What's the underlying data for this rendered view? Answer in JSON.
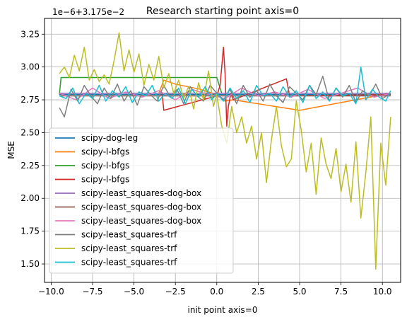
{
  "chart_data": {
    "type": "line",
    "title": "Research starting point axis=0",
    "xlabel": "init point axis=0",
    "ylabel": "MSE",
    "offset_label": "1e−6+3.175e−2",
    "xlim": [
      -10.4,
      11.1
    ],
    "ylim": [
      1.36,
      3.37
    ],
    "grid": true,
    "legend_position": "lower-left",
    "x_ticks": [
      -10.0,
      -7.5,
      -5.0,
      -2.5,
      0.0,
      2.5,
      5.0,
      7.5,
      10.0
    ],
    "x_tick_labels": [
      "−10.0",
      "−7.5",
      "−5.0",
      "−2.5",
      "0.0",
      "2.5",
      "5.0",
      "7.5",
      "10.0"
    ],
    "y_ticks": [
      1.5,
      1.75,
      2.0,
      2.25,
      2.5,
      2.75,
      3.0,
      3.25
    ],
    "y_tick_labels": [
      "1.50",
      "1.75",
      "2.00",
      "2.25",
      "2.50",
      "2.75",
      "3.00",
      "3.25"
    ],
    "series": [
      {
        "name": "scipy-dog-leg",
        "color": "#1f77b4",
        "x": [
          -9.5,
          -5.0,
          0.0,
          5.0,
          10.5
        ],
        "y": [
          2.79,
          2.79,
          2.79,
          2.79,
          2.79
        ]
      },
      {
        "name": "scipy-l-bfgs",
        "color": "#ff7f0e",
        "x": [
          -9.5,
          -3.5,
          -3.2,
          -2.5,
          -1.0,
          0.0,
          0.5,
          1.0,
          5.0,
          10.5
        ],
        "y": [
          2.8,
          2.8,
          2.9,
          2.87,
          2.83,
          2.79,
          2.74,
          2.75,
          2.67,
          2.8
        ]
      },
      {
        "name": "scipy-l-bfgs",
        "color": "#2ca02c",
        "x": [
          -9.5,
          -9.4,
          0.0,
          0.3,
          10.5
        ],
        "y": [
          2.79,
          2.92,
          2.92,
          2.8,
          2.8
        ]
      },
      {
        "name": "scipy-l-bfgs",
        "color": "#d62728",
        "x": [
          -9.5,
          -3.3,
          -3.2,
          0.0,
          0.2,
          0.4,
          0.5,
          0.6,
          0.7,
          0.85,
          1.0,
          4.2,
          4.4,
          10.5
        ],
        "y": [
          2.8,
          2.8,
          2.67,
          2.78,
          2.86,
          3.15,
          2.95,
          2.55,
          2.7,
          2.8,
          2.75,
          2.91,
          2.78,
          2.79
        ]
      },
      {
        "name": "scipy-least_squares-dog-box",
        "color": "#9467bd",
        "x": [
          -9.5,
          -5.0,
          0.0,
          5.0,
          10.5
        ],
        "y": [
          2.8,
          2.8,
          2.8,
          2.8,
          2.8
        ]
      },
      {
        "name": "scipy-least_squares-dog-box",
        "color": "#8c564b",
        "x": [
          -9.5,
          -5.0,
          0.0,
          5.0,
          10.5
        ],
        "y": [
          2.78,
          2.78,
          2.78,
          2.78,
          2.78
        ]
      },
      {
        "name": "scipy-least_squares-dog-box",
        "color": "#e377c2",
        "x": [
          -9.5,
          -8.5,
          -7.5,
          -6.5,
          -5.5,
          -4.5,
          -3.5,
          -2.5,
          -1.5,
          -0.5,
          0.5,
          1.5,
          2.5,
          3.5,
          4.5,
          5.5,
          6.5,
          7.5,
          8.5,
          9.5,
          10.5
        ],
        "y": [
          2.8,
          2.75,
          2.84,
          2.76,
          2.81,
          2.77,
          2.82,
          2.75,
          2.83,
          2.79,
          2.76,
          2.84,
          2.78,
          2.81,
          2.77,
          2.83,
          2.76,
          2.8,
          2.84,
          2.77,
          2.8
        ]
      },
      {
        "name": "scipy-least_squares-trf",
        "color": "#7f7f7f",
        "x": [
          -9.5,
          -9.2,
          -8.8,
          -8.4,
          -8.0,
          -7.6,
          -7.2,
          -6.8,
          -6.4,
          -6.0,
          -5.6,
          -5.2,
          -4.8,
          -4.4,
          -4.0,
          -3.6,
          -3.2,
          -2.8,
          -2.4,
          -2.0,
          -1.6,
          -1.2,
          -0.8,
          -0.4,
          0.0,
          0.4,
          0.8,
          1.2,
          1.6,
          2.0,
          2.4,
          2.8,
          3.2,
          3.6,
          4.0,
          4.4,
          4.8,
          5.2,
          5.6,
          6.0,
          6.4,
          6.8,
          7.2,
          7.6,
          8.0,
          8.4,
          8.8,
          9.2,
          9.6,
          10.0,
          10.5
        ],
        "y": [
          2.69,
          2.62,
          2.83,
          2.74,
          2.86,
          2.78,
          2.72,
          2.84,
          2.76,
          2.87,
          2.74,
          2.82,
          2.71,
          2.85,
          2.79,
          2.74,
          2.86,
          2.77,
          2.83,
          2.72,
          2.85,
          2.78,
          2.74,
          2.86,
          2.8,
          2.75,
          2.83,
          2.72,
          2.86,
          2.77,
          2.82,
          2.74,
          2.87,
          2.78,
          2.73,
          2.85,
          2.8,
          2.75,
          2.86,
          2.79,
          2.93,
          2.74,
          2.84,
          2.77,
          2.86,
          2.73,
          2.82,
          2.78,
          2.87,
          2.76,
          2.8
        ]
      },
      {
        "name": "scipy-least_squares-trf",
        "color": "#bcbd22",
        "x": [
          -9.5,
          -9.2,
          -8.9,
          -8.6,
          -8.3,
          -8.0,
          -7.7,
          -7.4,
          -7.1,
          -6.8,
          -6.5,
          -6.2,
          -5.9,
          -5.6,
          -5.3,
          -5.0,
          -4.7,
          -4.4,
          -4.1,
          -3.8,
          -3.5,
          -3.2,
          -2.9,
          -2.6,
          -2.3,
          -2.0,
          -1.7,
          -1.4,
          -1.1,
          -0.8,
          -0.5,
          -0.2,
          0.0,
          0.3,
          0.6,
          0.9,
          1.2,
          1.5,
          1.8,
          2.1,
          2.4,
          2.7,
          3.0,
          3.3,
          3.6,
          3.9,
          4.2,
          4.5,
          4.8,
          5.1,
          5.4,
          5.7,
          6.0,
          6.3,
          6.6,
          6.9,
          7.2,
          7.5,
          7.8,
          8.1,
          8.4,
          8.7,
          9.0,
          9.3,
          9.6,
          9.9,
          10.2,
          10.5
        ],
        "y": [
          2.95,
          3.0,
          2.92,
          3.09,
          2.97,
          3.15,
          2.9,
          2.98,
          2.89,
          2.94,
          2.87,
          3.05,
          3.26,
          2.97,
          3.13,
          2.96,
          3.1,
          2.86,
          3.02,
          2.9,
          3.08,
          2.84,
          2.95,
          2.8,
          2.9,
          2.76,
          2.85,
          2.68,
          2.88,
          2.75,
          2.97,
          2.7,
          2.79,
          2.55,
          2.42,
          2.7,
          2.5,
          2.62,
          2.42,
          2.55,
          2.3,
          2.5,
          2.12,
          2.45,
          2.7,
          2.4,
          2.24,
          2.3,
          2.74,
          2.52,
          2.2,
          2.42,
          2.03,
          2.46,
          2.26,
          2.15,
          2.38,
          2.05,
          2.26,
          1.97,
          2.43,
          1.85,
          2.2,
          2.62,
          1.46,
          2.42,
          2.1,
          2.62
        ]
      },
      {
        "name": "scipy-least_squares-trf",
        "color": "#17becf",
        "x": [
          -9.5,
          -9.1,
          -8.7,
          -8.3,
          -7.9,
          -7.5,
          -7.1,
          -6.7,
          -6.3,
          -5.9,
          -5.5,
          -5.1,
          -4.7,
          -4.3,
          -3.9,
          -3.5,
          -3.1,
          -2.7,
          -2.3,
          -1.9,
          -1.5,
          -1.1,
          -0.7,
          -0.3,
          0.0,
          0.4,
          0.8,
          1.2,
          1.6,
          2.0,
          2.4,
          2.8,
          3.2,
          3.6,
          4.0,
          4.4,
          4.8,
          5.2,
          5.6,
          6.0,
          6.4,
          6.8,
          7.2,
          7.6,
          8.0,
          8.4,
          8.7,
          9.0,
          9.4,
          9.8,
          10.2,
          10.5
        ],
        "y": [
          2.78,
          2.76,
          2.84,
          2.72,
          2.8,
          2.76,
          2.86,
          2.74,
          2.82,
          2.77,
          2.85,
          2.73,
          2.81,
          2.78,
          2.86,
          2.74,
          2.8,
          2.76,
          2.84,
          2.72,
          2.83,
          2.77,
          2.85,
          2.75,
          2.8,
          2.74,
          2.84,
          2.76,
          2.82,
          2.73,
          2.86,
          2.78,
          2.8,
          2.74,
          2.85,
          2.77,
          2.82,
          2.73,
          2.86,
          2.76,
          2.81,
          2.74,
          2.84,
          2.78,
          2.8,
          2.72,
          3.0,
          2.75,
          2.83,
          2.77,
          2.74,
          2.82
        ]
      }
    ]
  }
}
